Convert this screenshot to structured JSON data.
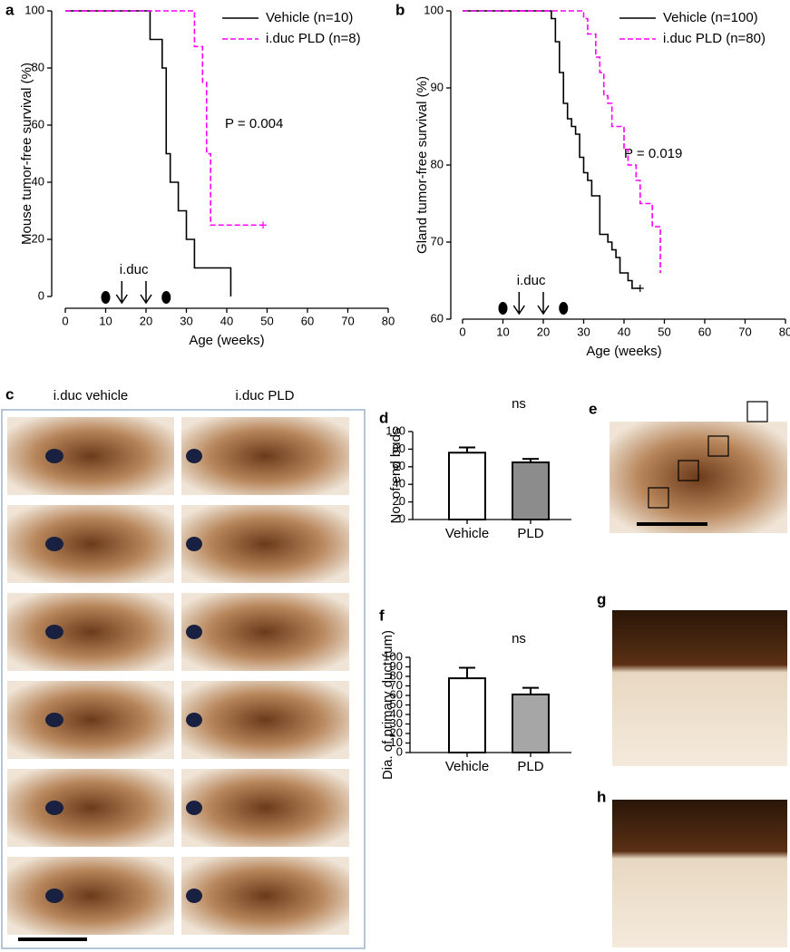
{
  "chart_data": [
    {
      "type": "step",
      "panel": "a",
      "ylabel": "Mouse tumor-free survival (%)",
      "xlabel": "Age (weeks)",
      "annotation": "P = 0.004",
      "marker_label": "i.duc",
      "arrows_x": [
        14,
        20
      ],
      "dots_x": [
        10,
        25
      ],
      "xlim": [
        0,
        80
      ],
      "xticks": [
        0,
        10,
        20,
        30,
        40,
        50,
        60,
        70,
        80
      ],
      "ylim": [
        0,
        100
      ],
      "yticks": [
        0,
        20,
        40,
        60,
        80,
        100
      ],
      "legend": "upper right",
      "series": [
        {
          "name": "Vehicle (n=10)",
          "color": "#000000",
          "dashed": false,
          "censored_end": false,
          "x": [
            0,
            21,
            24,
            25,
            26,
            28,
            30,
            32,
            41
          ],
          "values": [
            100,
            90,
            80,
            50,
            40,
            30,
            20,
            10,
            0
          ]
        },
        {
          "name": "i.duc PLD (n=8)",
          "color": "#ff00ff",
          "dashed": true,
          "censored_end": true,
          "x": [
            0,
            32,
            34,
            35,
            36,
            49
          ],
          "values": [
            100,
            87.5,
            75,
            50,
            25,
            25
          ]
        }
      ]
    },
    {
      "type": "step",
      "panel": "b",
      "ylabel": "Gland tumor-free survival (%)",
      "xlabel": "Age (weeks)",
      "annotation": "P = 0.019",
      "marker_label": "i.duc",
      "arrows_x": [
        14,
        20
      ],
      "dots_x": [
        10,
        25
      ],
      "xlim": [
        0,
        80
      ],
      "xticks": [
        0,
        10,
        20,
        30,
        40,
        50,
        60,
        70,
        80
      ],
      "ylim": [
        60,
        100
      ],
      "yticks": [
        60,
        70,
        80,
        90,
        100
      ],
      "legend": "upper right",
      "series": [
        {
          "name": "Vehicle (n=100)",
          "color": "#000000",
          "dashed": false,
          "censored_end": true,
          "x": [
            0,
            22,
            23,
            24,
            25,
            26,
            27,
            28,
            29,
            30,
            31,
            32,
            34,
            36,
            37,
            38,
            39,
            41,
            42,
            44
          ],
          "values": [
            100,
            99,
            96,
            92,
            88,
            86,
            85,
            84,
            81,
            79,
            78,
            76,
            71,
            70,
            69,
            68,
            66,
            65,
            64,
            64
          ]
        },
        {
          "name": "i.duc PLD (n=80)",
          "color": "#ff00ff",
          "dashed": true,
          "censored_end": false,
          "x": [
            0,
            30,
            31,
            33,
            34,
            35,
            36,
            37,
            40,
            41,
            43,
            44,
            47,
            49
          ],
          "values": [
            100,
            99,
            97,
            94,
            92,
            89,
            88,
            85,
            82,
            80,
            78,
            75,
            72,
            66
          ]
        }
      ]
    },
    {
      "type": "bar",
      "panel": "d",
      "ylabel": "No. of end buds",
      "annotation": "ns",
      "categories": [
        "Vehicle",
        "PLD"
      ],
      "values": [
        76,
        65
      ],
      "errors": [
        6,
        4
      ],
      "colors": [
        "#ffffff",
        "#8c8c8c"
      ],
      "ylim": [
        0,
        100
      ],
      "yticks": [
        0,
        20,
        40,
        60,
        80,
        100
      ]
    },
    {
      "type": "bar",
      "panel": "f",
      "ylabel": "Dia. of primary duct (um)",
      "annotation": "ns",
      "categories": [
        "Vehicle",
        "PLD"
      ],
      "values": [
        78,
        61
      ],
      "errors": [
        11,
        7
      ],
      "colors": [
        "#ffffff",
        "#a6a6a6"
      ],
      "ylim": [
        0,
        100
      ],
      "yticks": [
        0,
        10,
        20,
        30,
        40,
        50,
        60,
        70,
        80,
        90,
        100
      ]
    }
  ],
  "image_panels": [
    {
      "panel": "c",
      "columns": [
        "i.duc vehicle",
        "i.duc PLD"
      ]
    },
    {
      "panel": "e"
    },
    {
      "panel": "g"
    },
    {
      "panel": "h"
    }
  ]
}
